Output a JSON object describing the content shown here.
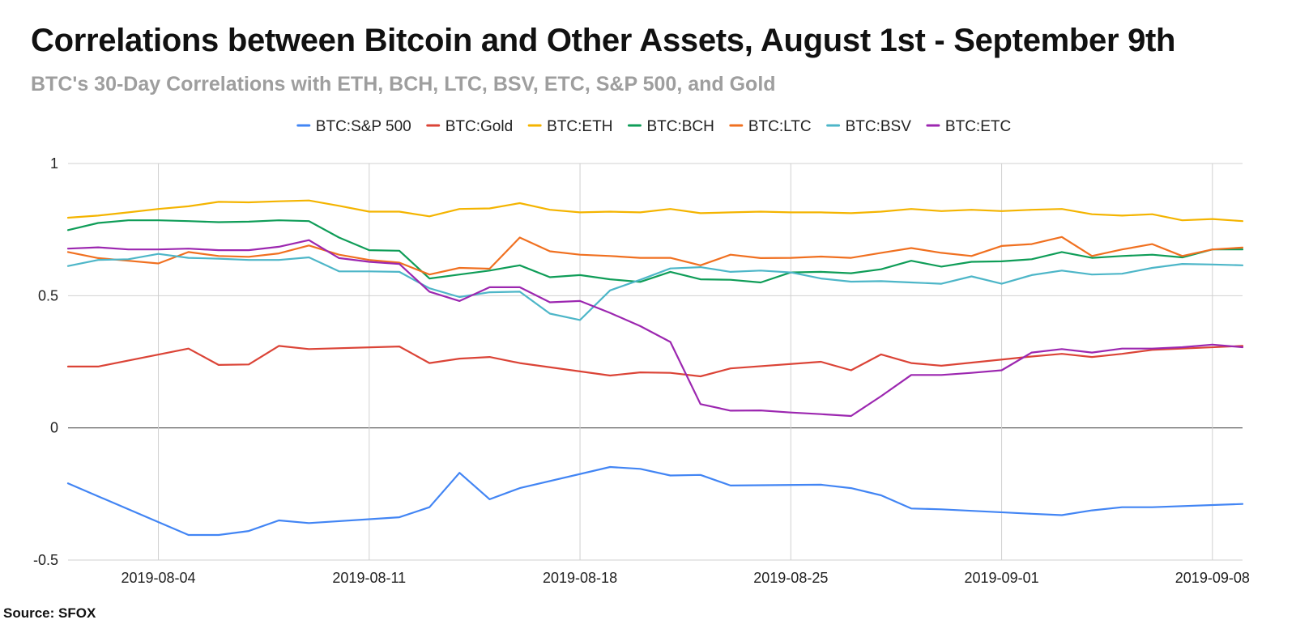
{
  "header": {
    "title": "Correlations between Bitcoin and Other Assets, August 1st - September 9th",
    "subtitle": "BTC's 30-Day Correlations with ETH, BCH, LTC, BSV, ETC, S&P 500, and Gold"
  },
  "footer": {
    "source": "Source: SFOX"
  },
  "chart_data": {
    "type": "line",
    "title": "Correlations between Bitcoin and Other Assets, August 1st - September 9th",
    "subtitle": "BTC's 30-Day Correlations with ETH, BCH, LTC, BSV, ETC, S&P 500, and Gold",
    "xlabel": "",
    "ylabel": "",
    "ylim": [
      -0.5,
      1
    ],
    "yticks": [
      {
        "value": -0.5,
        "label": "-0.5"
      },
      {
        "value": 0,
        "label": "0"
      },
      {
        "value": 0.5,
        "label": "0.5"
      },
      {
        "value": 1,
        "label": "1"
      }
    ],
    "xlim": [
      "2019-08-01",
      "2019-09-09"
    ],
    "xticks": [
      "2019-08-04",
      "2019-08-11",
      "2019-08-18",
      "2019-08-25",
      "2019-09-01",
      "2019-09-08"
    ],
    "grid": true,
    "legend_position": "top",
    "series": [
      {
        "name": "BTC:S&P 500",
        "color": "#4285f4",
        "points": [
          [
            "2019-08-01",
            -0.21
          ],
          [
            "2019-08-05",
            -0.405
          ],
          [
            "2019-08-06",
            -0.405
          ],
          [
            "2019-08-07",
            -0.39
          ],
          [
            "2019-08-08",
            -0.35
          ],
          [
            "2019-08-09",
            -0.36
          ],
          [
            "2019-08-12",
            -0.338
          ],
          [
            "2019-08-13",
            -0.3
          ],
          [
            "2019-08-14",
            -0.17
          ],
          [
            "2019-08-15",
            -0.27
          ],
          [
            "2019-08-16",
            -0.228
          ],
          [
            "2019-08-19",
            -0.148
          ],
          [
            "2019-08-20",
            -0.155
          ],
          [
            "2019-08-21",
            -0.18
          ],
          [
            "2019-08-22",
            -0.178
          ],
          [
            "2019-08-23",
            -0.218
          ],
          [
            "2019-08-26",
            -0.215
          ],
          [
            "2019-08-27",
            -0.228
          ],
          [
            "2019-08-28",
            -0.255
          ],
          [
            "2019-08-29",
            -0.305
          ],
          [
            "2019-08-30",
            -0.308
          ],
          [
            "2019-09-02",
            -0.325
          ],
          [
            "2019-09-03",
            -0.33
          ],
          [
            "2019-09-04",
            -0.312
          ],
          [
            "2019-09-05",
            -0.3
          ],
          [
            "2019-09-06",
            -0.3
          ],
          [
            "2019-09-09",
            -0.288
          ]
        ]
      },
      {
        "name": "BTC:Gold",
        "color": "#db4437",
        "points": [
          [
            "2019-08-01",
            0.232
          ],
          [
            "2019-08-02",
            0.232
          ],
          [
            "2019-08-05",
            0.3
          ],
          [
            "2019-08-06",
            0.238
          ],
          [
            "2019-08-07",
            0.24
          ],
          [
            "2019-08-08",
            0.31
          ],
          [
            "2019-08-09",
            0.298
          ],
          [
            "2019-08-12",
            0.308
          ],
          [
            "2019-08-13",
            0.245
          ],
          [
            "2019-08-14",
            0.262
          ],
          [
            "2019-08-15",
            0.268
          ],
          [
            "2019-08-16",
            0.245
          ],
          [
            "2019-08-19",
            0.198
          ],
          [
            "2019-08-20",
            0.21
          ],
          [
            "2019-08-21",
            0.208
          ],
          [
            "2019-08-22",
            0.195
          ],
          [
            "2019-08-23",
            0.225
          ],
          [
            "2019-08-26",
            0.25
          ],
          [
            "2019-08-27",
            0.218
          ],
          [
            "2019-08-28",
            0.278
          ],
          [
            "2019-08-29",
            0.245
          ],
          [
            "2019-08-30",
            0.235
          ],
          [
            "2019-09-02",
            0.27
          ],
          [
            "2019-09-03",
            0.28
          ],
          [
            "2019-09-04",
            0.268
          ],
          [
            "2019-09-05",
            0.28
          ],
          [
            "2019-09-06",
            0.295
          ],
          [
            "2019-09-09",
            0.31
          ]
        ]
      },
      {
        "name": "BTC:ETH",
        "color": "#f4b400",
        "points": [
          [
            "2019-08-01",
            0.795
          ],
          [
            "2019-08-02",
            0.803
          ],
          [
            "2019-08-03",
            0.815
          ],
          [
            "2019-08-04",
            0.828
          ],
          [
            "2019-08-05",
            0.838
          ],
          [
            "2019-08-06",
            0.855
          ],
          [
            "2019-08-07",
            0.853
          ],
          [
            "2019-08-08",
            0.857
          ],
          [
            "2019-08-09",
            0.86
          ],
          [
            "2019-08-10",
            0.84
          ],
          [
            "2019-08-11",
            0.818
          ],
          [
            "2019-08-12",
            0.818
          ],
          [
            "2019-08-13",
            0.8
          ],
          [
            "2019-08-14",
            0.828
          ],
          [
            "2019-08-15",
            0.83
          ],
          [
            "2019-08-16",
            0.85
          ],
          [
            "2019-08-17",
            0.825
          ],
          [
            "2019-08-18",
            0.815
          ],
          [
            "2019-08-19",
            0.818
          ],
          [
            "2019-08-20",
            0.815
          ],
          [
            "2019-08-21",
            0.828
          ],
          [
            "2019-08-22",
            0.812
          ],
          [
            "2019-08-23",
            0.815
          ],
          [
            "2019-08-24",
            0.818
          ],
          [
            "2019-08-25",
            0.815
          ],
          [
            "2019-08-26",
            0.815
          ],
          [
            "2019-08-27",
            0.812
          ],
          [
            "2019-08-28",
            0.818
          ],
          [
            "2019-08-29",
            0.828
          ],
          [
            "2019-08-30",
            0.82
          ],
          [
            "2019-08-31",
            0.825
          ],
          [
            "2019-09-01",
            0.82
          ],
          [
            "2019-09-02",
            0.825
          ],
          [
            "2019-09-03",
            0.828
          ],
          [
            "2019-09-04",
            0.808
          ],
          [
            "2019-09-05",
            0.803
          ],
          [
            "2019-09-06",
            0.808
          ],
          [
            "2019-09-07",
            0.785
          ],
          [
            "2019-09-08",
            0.79
          ],
          [
            "2019-09-09",
            0.782
          ]
        ]
      },
      {
        "name": "BTC:BCH",
        "color": "#0f9d58",
        "points": [
          [
            "2019-08-01",
            0.748
          ],
          [
            "2019-08-02",
            0.775
          ],
          [
            "2019-08-03",
            0.785
          ],
          [
            "2019-08-04",
            0.785
          ],
          [
            "2019-08-05",
            0.782
          ],
          [
            "2019-08-06",
            0.778
          ],
          [
            "2019-08-07",
            0.78
          ],
          [
            "2019-08-08",
            0.785
          ],
          [
            "2019-08-09",
            0.782
          ],
          [
            "2019-08-10",
            0.72
          ],
          [
            "2019-08-11",
            0.672
          ],
          [
            "2019-08-12",
            0.67
          ],
          [
            "2019-08-13",
            0.565
          ],
          [
            "2019-08-14",
            0.58
          ],
          [
            "2019-08-15",
            0.595
          ],
          [
            "2019-08-16",
            0.615
          ],
          [
            "2019-08-17",
            0.57
          ],
          [
            "2019-08-18",
            0.578
          ],
          [
            "2019-08-19",
            0.562
          ],
          [
            "2019-08-20",
            0.552
          ],
          [
            "2019-08-21",
            0.59
          ],
          [
            "2019-08-22",
            0.562
          ],
          [
            "2019-08-23",
            0.56
          ],
          [
            "2019-08-24",
            0.55
          ],
          [
            "2019-08-25",
            0.588
          ],
          [
            "2019-08-26",
            0.59
          ],
          [
            "2019-08-27",
            0.585
          ],
          [
            "2019-08-28",
            0.6
          ],
          [
            "2019-08-29",
            0.632
          ],
          [
            "2019-08-30",
            0.61
          ],
          [
            "2019-08-31",
            0.628
          ],
          [
            "2019-09-01",
            0.63
          ],
          [
            "2019-09-02",
            0.638
          ],
          [
            "2019-09-03",
            0.665
          ],
          [
            "2019-09-04",
            0.643
          ],
          [
            "2019-09-05",
            0.65
          ],
          [
            "2019-09-06",
            0.655
          ],
          [
            "2019-09-07",
            0.645
          ],
          [
            "2019-09-08",
            0.675
          ],
          [
            "2019-09-09",
            0.675
          ]
        ]
      },
      {
        "name": "BTC:LTC",
        "color": "#f07020",
        "points": [
          [
            "2019-08-01",
            0.665
          ],
          [
            "2019-08-02",
            0.642
          ],
          [
            "2019-08-03",
            0.632
          ],
          [
            "2019-08-04",
            0.622
          ],
          [
            "2019-08-05",
            0.665
          ],
          [
            "2019-08-06",
            0.65
          ],
          [
            "2019-08-07",
            0.647
          ],
          [
            "2019-08-08",
            0.66
          ],
          [
            "2019-08-09",
            0.69
          ],
          [
            "2019-08-10",
            0.655
          ],
          [
            "2019-08-11",
            0.635
          ],
          [
            "2019-08-12",
            0.625
          ],
          [
            "2019-08-13",
            0.58
          ],
          [
            "2019-08-14",
            0.605
          ],
          [
            "2019-08-15",
            0.602
          ],
          [
            "2019-08-16",
            0.72
          ],
          [
            "2019-08-17",
            0.668
          ],
          [
            "2019-08-18",
            0.655
          ],
          [
            "2019-08-19",
            0.65
          ],
          [
            "2019-08-20",
            0.643
          ],
          [
            "2019-08-21",
            0.643
          ],
          [
            "2019-08-22",
            0.615
          ],
          [
            "2019-08-23",
            0.655
          ],
          [
            "2019-08-24",
            0.642
          ],
          [
            "2019-08-25",
            0.643
          ],
          [
            "2019-08-26",
            0.648
          ],
          [
            "2019-08-27",
            0.643
          ],
          [
            "2019-08-28",
            0.662
          ],
          [
            "2019-08-29",
            0.68
          ],
          [
            "2019-08-30",
            0.662
          ],
          [
            "2019-08-31",
            0.65
          ],
          [
            "2019-09-01",
            0.688
          ],
          [
            "2019-09-02",
            0.695
          ],
          [
            "2019-09-03",
            0.722
          ],
          [
            "2019-09-04",
            0.65
          ],
          [
            "2019-09-05",
            0.675
          ],
          [
            "2019-09-06",
            0.695
          ],
          [
            "2019-09-07",
            0.65
          ],
          [
            "2019-09-08",
            0.675
          ],
          [
            "2019-09-09",
            0.682
          ]
        ]
      },
      {
        "name": "BTC:BSV",
        "color": "#4db6c8",
        "points": [
          [
            "2019-08-01",
            0.612
          ],
          [
            "2019-08-02",
            0.635
          ],
          [
            "2019-08-03",
            0.638
          ],
          [
            "2019-08-04",
            0.658
          ],
          [
            "2019-08-05",
            0.643
          ],
          [
            "2019-08-06",
            0.64
          ],
          [
            "2019-08-07",
            0.635
          ],
          [
            "2019-08-08",
            0.635
          ],
          [
            "2019-08-09",
            0.645
          ],
          [
            "2019-08-10",
            0.592
          ],
          [
            "2019-08-11",
            0.592
          ],
          [
            "2019-08-12",
            0.59
          ],
          [
            "2019-08-13",
            0.528
          ],
          [
            "2019-08-14",
            0.495
          ],
          [
            "2019-08-15",
            0.513
          ],
          [
            "2019-08-16",
            0.515
          ],
          [
            "2019-08-17",
            0.432
          ],
          [
            "2019-08-18",
            0.408
          ],
          [
            "2019-08-19",
            0.52
          ],
          [
            "2019-08-20",
            0.56
          ],
          [
            "2019-08-21",
            0.603
          ],
          [
            "2019-08-22",
            0.608
          ],
          [
            "2019-08-23",
            0.59
          ],
          [
            "2019-08-24",
            0.595
          ],
          [
            "2019-08-25",
            0.588
          ],
          [
            "2019-08-26",
            0.565
          ],
          [
            "2019-08-27",
            0.553
          ],
          [
            "2019-08-28",
            0.555
          ],
          [
            "2019-08-29",
            0.55
          ],
          [
            "2019-08-30",
            0.545
          ],
          [
            "2019-08-31",
            0.573
          ],
          [
            "2019-09-01",
            0.545
          ],
          [
            "2019-09-02",
            0.578
          ],
          [
            "2019-09-03",
            0.595
          ],
          [
            "2019-09-04",
            0.58
          ],
          [
            "2019-09-05",
            0.583
          ],
          [
            "2019-09-06",
            0.605
          ],
          [
            "2019-09-07",
            0.62
          ],
          [
            "2019-09-08",
            0.618
          ],
          [
            "2019-09-09",
            0.615
          ]
        ]
      },
      {
        "name": "BTC:ETC",
        "color": "#9c27b0",
        "points": [
          [
            "2019-08-01",
            0.678
          ],
          [
            "2019-08-02",
            0.683
          ],
          [
            "2019-08-03",
            0.675
          ],
          [
            "2019-08-04",
            0.675
          ],
          [
            "2019-08-05",
            0.678
          ],
          [
            "2019-08-06",
            0.672
          ],
          [
            "2019-08-07",
            0.672
          ],
          [
            "2019-08-08",
            0.685
          ],
          [
            "2019-08-09",
            0.71
          ],
          [
            "2019-08-10",
            0.642
          ],
          [
            "2019-08-11",
            0.628
          ],
          [
            "2019-08-12",
            0.62
          ],
          [
            "2019-08-13",
            0.515
          ],
          [
            "2019-08-14",
            0.48
          ],
          [
            "2019-08-15",
            0.532
          ],
          [
            "2019-08-16",
            0.532
          ],
          [
            "2019-08-17",
            0.475
          ],
          [
            "2019-08-18",
            0.48
          ],
          [
            "2019-08-19",
            0.435
          ],
          [
            "2019-08-20",
            0.385
          ],
          [
            "2019-08-21",
            0.325
          ],
          [
            "2019-08-22",
            0.09
          ],
          [
            "2019-08-23",
            0.065
          ],
          [
            "2019-08-24",
            0.066
          ],
          [
            "2019-08-25",
            0.058
          ],
          [
            "2019-08-26",
            0.052
          ],
          [
            "2019-08-27",
            0.045
          ],
          [
            "2019-08-28",
            0.12
          ],
          [
            "2019-08-29",
            0.2
          ],
          [
            "2019-08-30",
            0.2
          ],
          [
            "2019-08-31",
            0.208
          ],
          [
            "2019-09-01",
            0.218
          ],
          [
            "2019-09-02",
            0.285
          ],
          [
            "2019-09-03",
            0.298
          ],
          [
            "2019-09-04",
            0.285
          ],
          [
            "2019-09-05",
            0.3
          ],
          [
            "2019-09-06",
            0.3
          ],
          [
            "2019-09-07",
            0.305
          ],
          [
            "2019-09-08",
            0.315
          ],
          [
            "2019-09-09",
            0.305
          ]
        ]
      }
    ]
  }
}
